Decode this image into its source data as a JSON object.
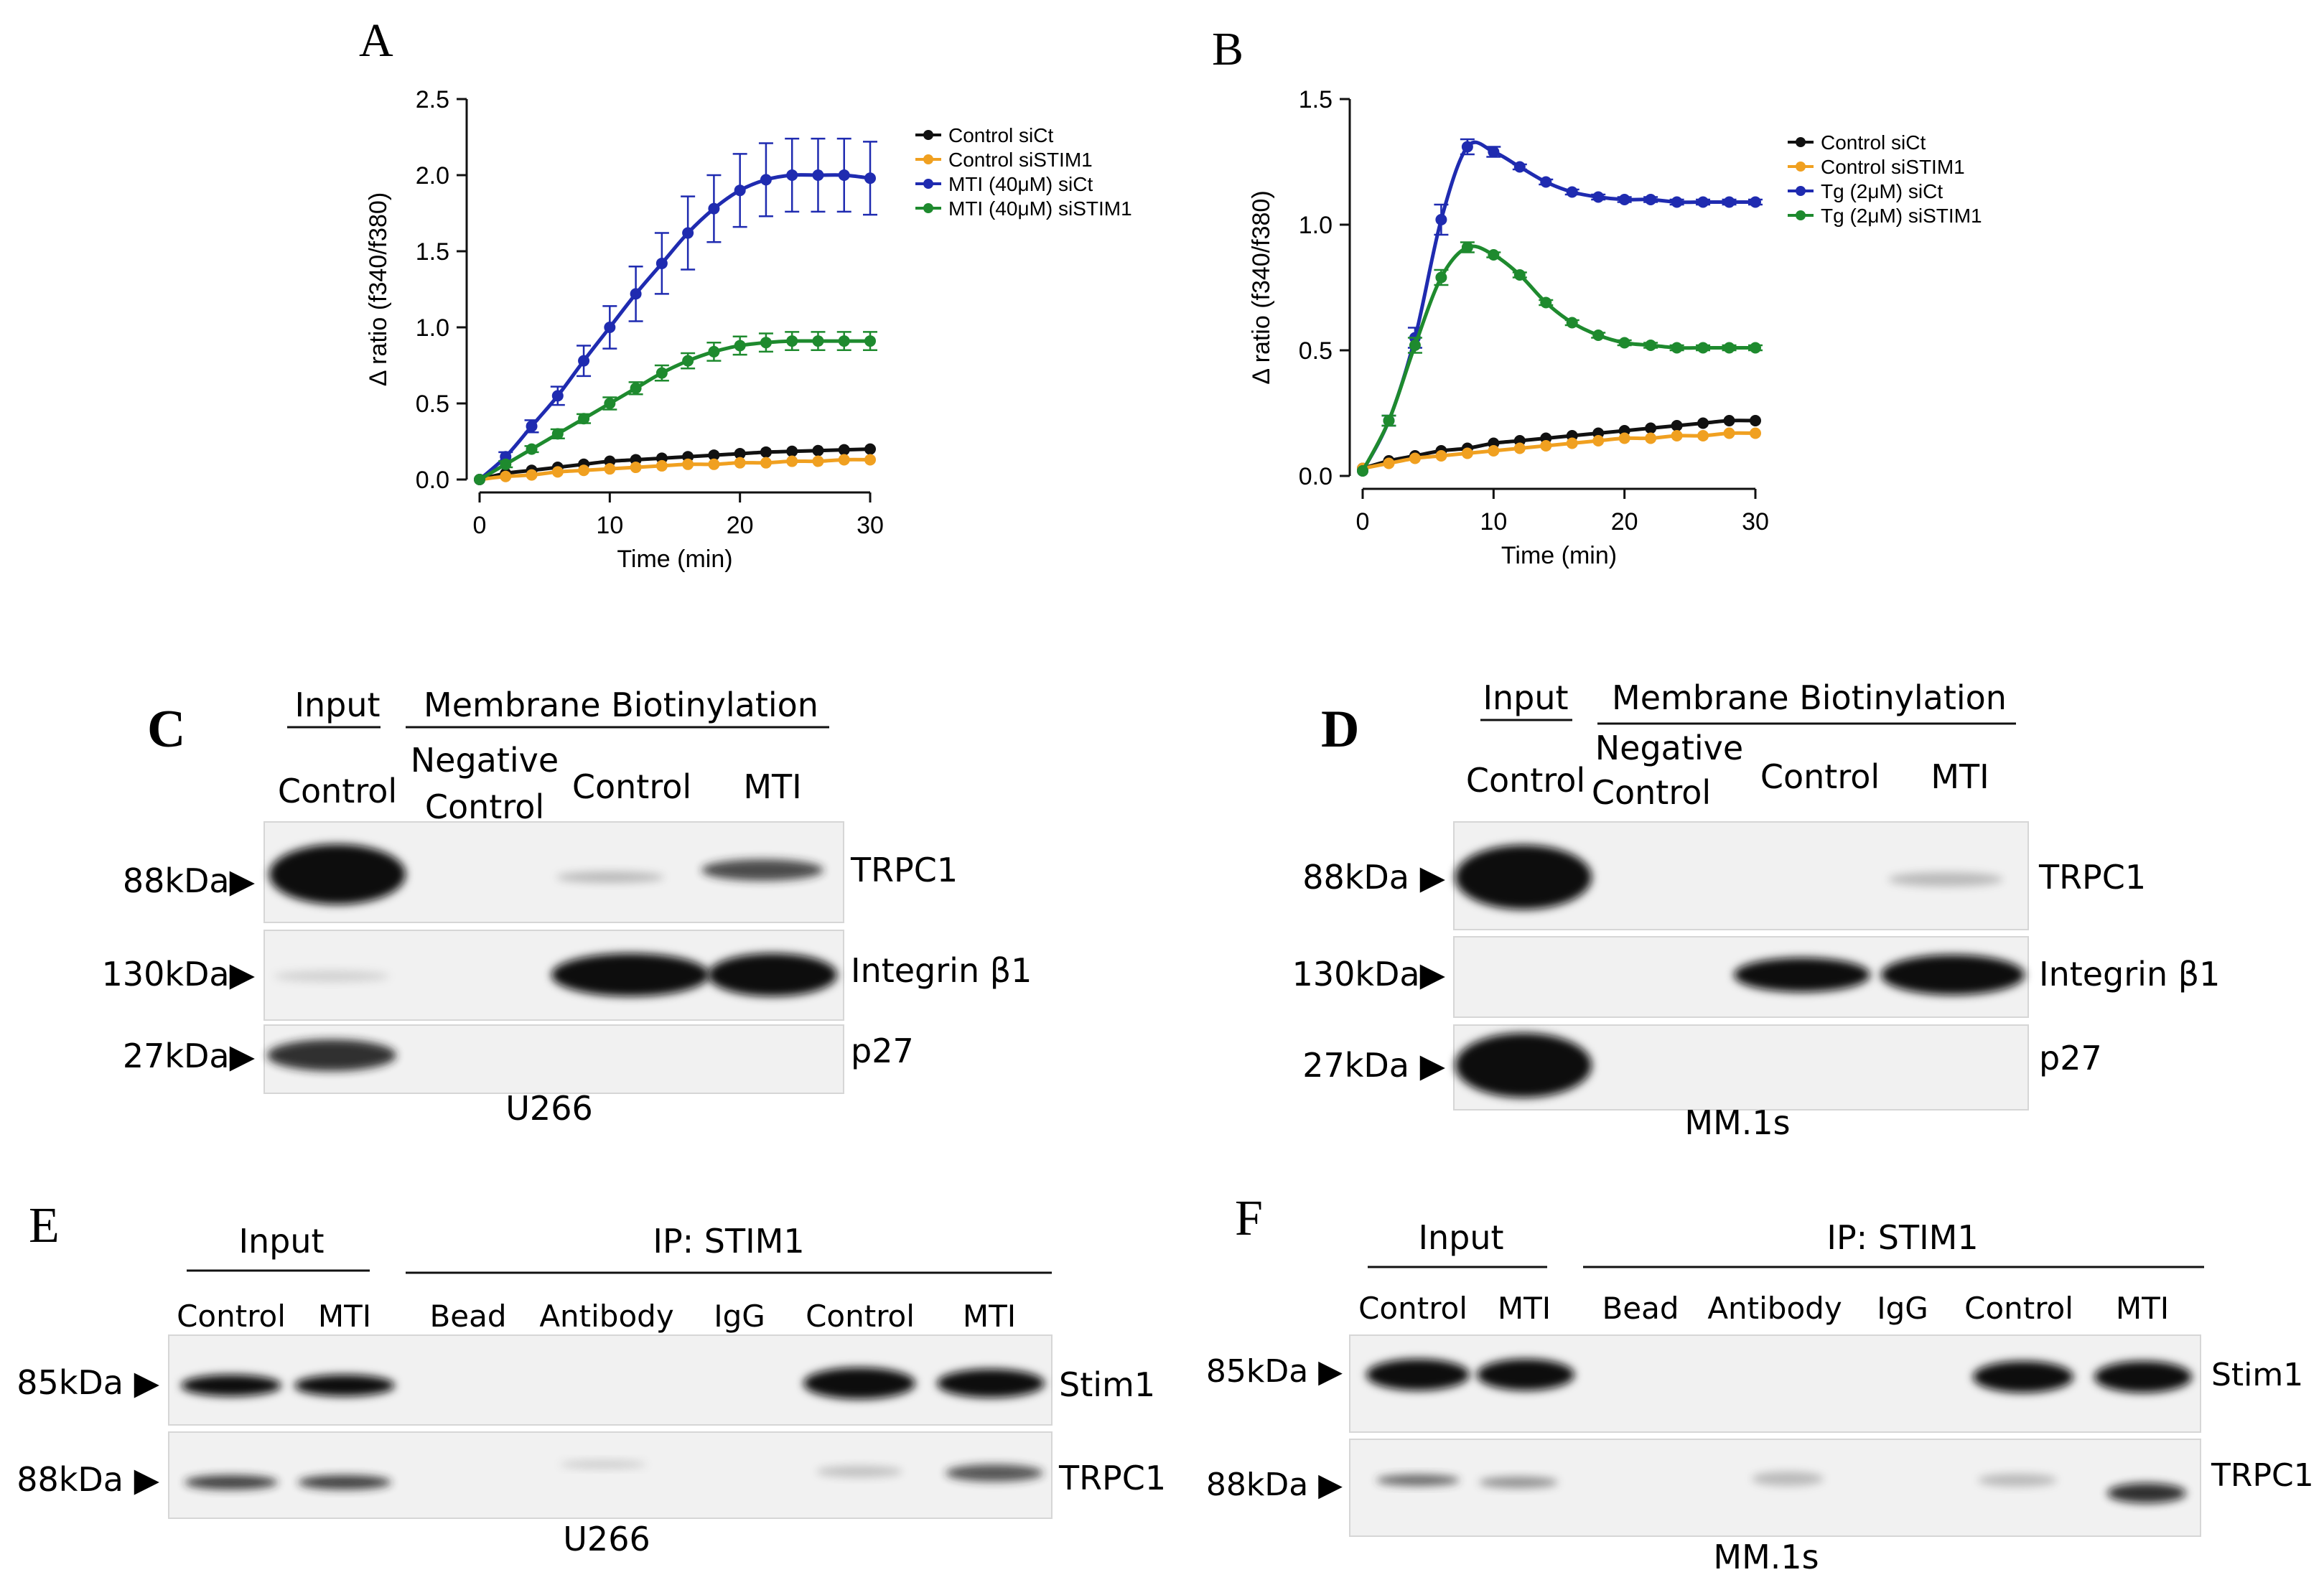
{
  "panels": {
    "A": {
      "label": "A",
      "chart_data": {
        "type": "line",
        "title": "",
        "xlabel": "Time (min)",
        "ylabel": "Δ ratio (f340/f380)",
        "xlim": [
          0,
          30
        ],
        "ylim": [
          0,
          2.5
        ],
        "xticks": [
          "0",
          "10",
          "20",
          "30"
        ],
        "yticks": [
          "0.0",
          "0.5",
          "1.0",
          "1.5",
          "2.0",
          "2.5"
        ],
        "x": [
          0,
          2,
          4,
          6,
          8,
          10,
          12,
          14,
          16,
          18,
          20,
          22,
          24,
          26,
          28,
          30
        ],
        "series": [
          {
            "name": "Control siCt",
            "color": "#111111",
            "error": [
              0,
              0,
              0,
              0,
              0,
              0,
              0,
              0,
              0,
              0,
              0,
              0,
              0,
              0,
              0,
              0
            ],
            "values": [
              0,
              0.04,
              0.06,
              0.08,
              0.1,
              0.12,
              0.13,
              0.14,
              0.15,
              0.16,
              0.17,
              0.18,
              0.185,
              0.19,
              0.195,
              0.2
            ]
          },
          {
            "name": "Control siSTIM1",
            "color": "#f0a020",
            "error": [
              0,
              0,
              0,
              0,
              0,
              0,
              0,
              0,
              0,
              0,
              0,
              0,
              0,
              0,
              0,
              0
            ],
            "values": [
              0,
              0.02,
              0.03,
              0.05,
              0.06,
              0.07,
              0.08,
              0.09,
              0.1,
              0.1,
              0.11,
              0.11,
              0.12,
              0.12,
              0.13,
              0.13
            ]
          },
          {
            "name": "MTI (40μM) siCt",
            "color": "#1f2bb0",
            "error": [
              0,
              0.03,
              0.04,
              0.06,
              0.1,
              0.14,
              0.18,
              0.2,
              0.24,
              0.22,
              0.24,
              0.24,
              0.24,
              0.24,
              0.24,
              0.24
            ],
            "values": [
              0,
              0.15,
              0.35,
              0.55,
              0.78,
              1.0,
              1.22,
              1.42,
              1.62,
              1.78,
              1.9,
              1.97,
              2.0,
              2.0,
              2.0,
              1.98
            ]
          },
          {
            "name": "MTI (40μM) siSTIM1",
            "color": "#1e8a2e",
            "error": [
              0,
              0.02,
              0.02,
              0.03,
              0.03,
              0.04,
              0.04,
              0.05,
              0.05,
              0.06,
              0.06,
              0.06,
              0.06,
              0.06,
              0.06,
              0.06
            ],
            "values": [
              0,
              0.1,
              0.2,
              0.3,
              0.4,
              0.5,
              0.6,
              0.7,
              0.78,
              0.84,
              0.88,
              0.9,
              0.91,
              0.91,
              0.91,
              0.91
            ]
          }
        ]
      }
    },
    "B": {
      "label": "B",
      "chart_data": {
        "type": "line",
        "title": "",
        "xlabel": "Time (min)",
        "ylabel": "Δ ratio (f340/f380)",
        "xlim": [
          0,
          30
        ],
        "ylim": [
          0,
          1.5
        ],
        "xticks": [
          "0",
          "10",
          "20",
          "30"
        ],
        "yticks": [
          "0.0",
          "0.5",
          "1.0",
          "1.5"
        ],
        "x": [
          0,
          2,
          4,
          6,
          8,
          10,
          12,
          14,
          16,
          18,
          20,
          22,
          24,
          26,
          28,
          30
        ],
        "series": [
          {
            "name": "Control siCt",
            "color": "#111111",
            "error": [
              0,
              0,
              0,
              0,
              0,
              0,
              0,
              0,
              0,
              0,
              0,
              0,
              0,
              0,
              0,
              0
            ],
            "values": [
              0.03,
              0.06,
              0.08,
              0.1,
              0.11,
              0.13,
              0.14,
              0.15,
              0.16,
              0.17,
              0.18,
              0.19,
              0.2,
              0.21,
              0.22,
              0.22
            ]
          },
          {
            "name": "Control siSTIM1",
            "color": "#f0a020",
            "error": [
              0,
              0,
              0,
              0,
              0,
              0,
              0,
              0,
              0,
              0,
              0,
              0,
              0,
              0,
              0,
              0
            ],
            "values": [
              0.03,
              0.05,
              0.07,
              0.08,
              0.09,
              0.1,
              0.11,
              0.12,
              0.13,
              0.14,
              0.15,
              0.15,
              0.16,
              0.16,
              0.17,
              0.17
            ]
          },
          {
            "name": "Tg (2μM) siCt",
            "color": "#1f2bb0",
            "error": [
              0,
              0.02,
              0.04,
              0.06,
              0.03,
              0.02,
              0.01,
              0.01,
              0.01,
              0.01,
              0.01,
              0.01,
              0.01,
              0.01,
              0.01,
              0.01
            ],
            "values": [
              0.02,
              0.22,
              0.55,
              1.02,
              1.31,
              1.29,
              1.23,
              1.17,
              1.13,
              1.11,
              1.1,
              1.1,
              1.09,
              1.09,
              1.09,
              1.09
            ]
          },
          {
            "name": "Tg (2μM) siSTIM1",
            "color": "#1e8a2e",
            "error": [
              0,
              0.02,
              0.03,
              0.03,
              0.02,
              0.01,
              0.01,
              0.01,
              0.01,
              0.01,
              0.01,
              0.01,
              0.01,
              0.01,
              0.01,
              0.01
            ],
            "values": [
              0.02,
              0.22,
              0.52,
              0.79,
              0.91,
              0.88,
              0.8,
              0.69,
              0.61,
              0.56,
              0.53,
              0.52,
              0.51,
              0.51,
              0.51,
              0.51
            ]
          }
        ]
      }
    },
    "C": {
      "label": "C",
      "header_input": "Input",
      "header_membrane": "Membrane Biotinylation",
      "lanes": [
        "Control",
        "Negative\nControl",
        "Control",
        "MTI"
      ],
      "markers": [
        "88kDa▶",
        "130kDa▶",
        "27kDa▶"
      ],
      "proteins": [
        "TRPC1",
        "Integrin β1",
        "p27"
      ],
      "cell_line": "U266"
    },
    "D": {
      "label": "D",
      "header_input": "Input",
      "header_membrane": "Membrane Biotinylation",
      "lanes": [
        "Control",
        "Negative\nControl",
        "Control",
        "MTI"
      ],
      "markers": [
        "88kDa ▶",
        "130kDa▶",
        "27kDa ▶"
      ],
      "proteins": [
        "TRPC1",
        "Integrin β1",
        "p27"
      ],
      "cell_line": "MM.1s"
    },
    "E": {
      "label": "E",
      "header_input": "Input",
      "header_ip": "IP: STIM1",
      "lanes": [
        "Control",
        "MTI",
        "Bead",
        "Antibody",
        "IgG",
        "Control",
        "MTI"
      ],
      "markers": [
        "85kDa ▶",
        "88kDa ▶"
      ],
      "proteins": [
        "Stim1",
        "TRPC1"
      ],
      "cell_line": "U266"
    },
    "F": {
      "label": "F",
      "header_input": "Input",
      "header_ip": "IP: STIM1",
      "lanes": [
        "Control",
        "MTI",
        "Bead",
        "Antibody",
        "IgG",
        "Control",
        "MTI"
      ],
      "markers": [
        "85kDa ▶",
        "88kDa ▶"
      ],
      "proteins": [
        "Stim1",
        "TRPC1"
      ],
      "cell_line": "MM.1s"
    }
  }
}
